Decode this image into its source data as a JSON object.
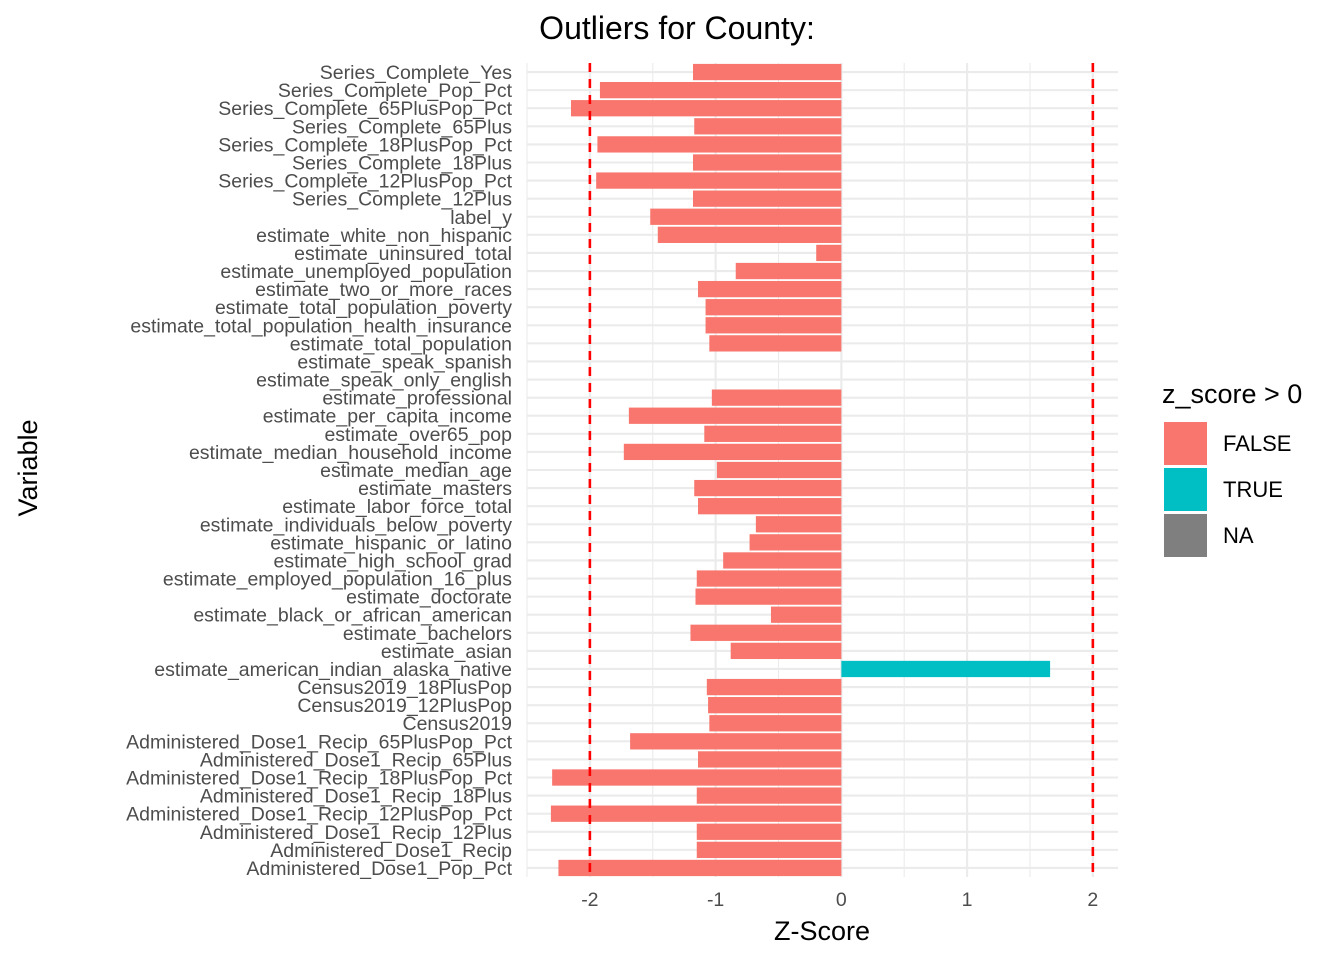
{
  "chart_data": {
    "type": "bar",
    "orientation": "horizontal",
    "title": "Outliers for County:",
    "xlabel": "Z-Score",
    "ylabel": "Variable",
    "xlim": [
      -2.5,
      2.2
    ],
    "x_ticks": [
      -2,
      -1,
      0,
      1,
      2
    ],
    "x_tick_labels": [
      "-2",
      "-1",
      "0",
      "1",
      "2"
    ],
    "reference_lines": [
      -2,
      2
    ],
    "reference_line_color": "#ff0000",
    "grid": true,
    "legend": {
      "title": "z_score > 0",
      "position": "right",
      "entries": [
        {
          "label": "FALSE",
          "color": "#f8766d"
        },
        {
          "label": "TRUE",
          "color": "#00bfc4"
        },
        {
          "label": "NA",
          "color": "#7f7f7f"
        }
      ]
    },
    "categories": [
      "Series_Complete_Yes",
      "Series_Complete_Pop_Pct",
      "Series_Complete_65PlusPop_Pct",
      "Series_Complete_65Plus",
      "Series_Complete_18PlusPop_Pct",
      "Series_Complete_18Plus",
      "Series_Complete_12PlusPop_Pct",
      "Series_Complete_12Plus",
      "label_y",
      "estimate_white_non_hispanic",
      "estimate_uninsured_total",
      "estimate_unemployed_population",
      "estimate_two_or_more_races",
      "estimate_total_population_poverty",
      "estimate_total_population_health_insurance",
      "estimate_total_population",
      "estimate_speak_spanish",
      "estimate_speak_only_english",
      "estimate_professional",
      "estimate_per_capita_income",
      "estimate_over65_pop",
      "estimate_median_household_income",
      "estimate_median_age",
      "estimate_masters",
      "estimate_labor_force_total",
      "estimate_individuals_below_poverty",
      "estimate_hispanic_or_latino",
      "estimate_high_school_grad",
      "estimate_employed_population_16_plus",
      "estimate_doctorate",
      "estimate_black_or_african_american",
      "estimate_bachelors",
      "estimate_asian",
      "estimate_american_indian_alaska_native",
      "Census2019_18PlusPop",
      "Census2019_12PlusPop",
      "Census2019",
      "Administered_Dose1_Recip_65PlusPop_Pct",
      "Administered_Dose1_Recip_65Plus",
      "Administered_Dose1_Recip_18PlusPop_Pct",
      "Administered_Dose1_Recip_18Plus",
      "Administered_Dose1_Recip_12PlusPop_Pct",
      "Administered_Dose1_Recip_12Plus",
      "Administered_Dose1_Recip",
      "Administered_Dose1_Pop_Pct"
    ],
    "values": [
      -1.18,
      -1.92,
      -2.15,
      -1.17,
      -1.94,
      -1.18,
      -1.95,
      -1.18,
      -1.52,
      -1.46,
      -0.2,
      -0.84,
      -1.14,
      -1.08,
      -1.08,
      -1.05,
      null,
      null,
      -1.03,
      -1.69,
      -1.09,
      -1.73,
      -0.99,
      -1.17,
      -1.14,
      -0.68,
      -0.73,
      -0.94,
      -1.15,
      -1.16,
      -0.56,
      -1.2,
      -0.88,
      1.66,
      -1.07,
      -1.06,
      -1.05,
      -1.68,
      -1.14,
      -2.3,
      -1.15,
      -2.31,
      -1.15,
      -1.15,
      -2.25
    ],
    "positive": [
      false,
      false,
      false,
      false,
      false,
      false,
      false,
      false,
      false,
      false,
      false,
      false,
      false,
      false,
      false,
      false,
      null,
      null,
      false,
      false,
      false,
      false,
      false,
      false,
      false,
      false,
      false,
      false,
      false,
      false,
      false,
      false,
      false,
      true,
      false,
      false,
      false,
      false,
      false,
      false,
      false,
      false,
      false,
      false,
      false
    ]
  }
}
